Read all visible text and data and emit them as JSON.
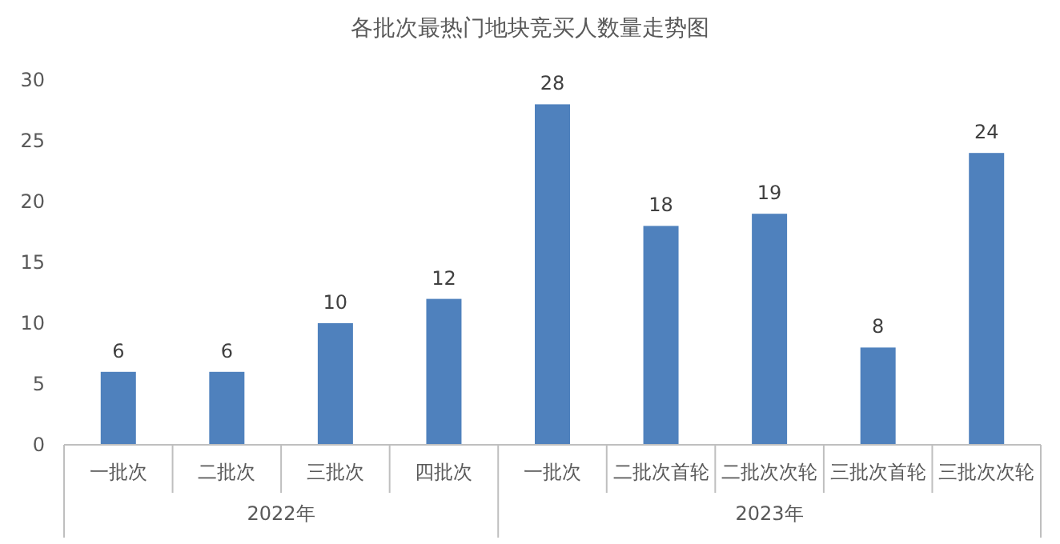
{
  "chart_data": {
    "type": "bar",
    "title": "各批次最热门地块竞买人数量走势图",
    "categories": [
      "一批次",
      "二批次",
      "三批次",
      "四批次",
      "一批次",
      "二批次首轮",
      "二批次次轮",
      "三批次首轮",
      "三批次次轮"
    ],
    "values": [
      6,
      6,
      10,
      12,
      28,
      18,
      19,
      8,
      24
    ],
    "color": "#4f81bd",
    "ylim": [
      0,
      30
    ],
    "yticks": [
      0,
      5,
      10,
      15,
      20,
      25,
      30
    ],
    "grid": false,
    "data_labels": true,
    "annotations": [
      "2022年",
      "2023年"
    ]
  }
}
